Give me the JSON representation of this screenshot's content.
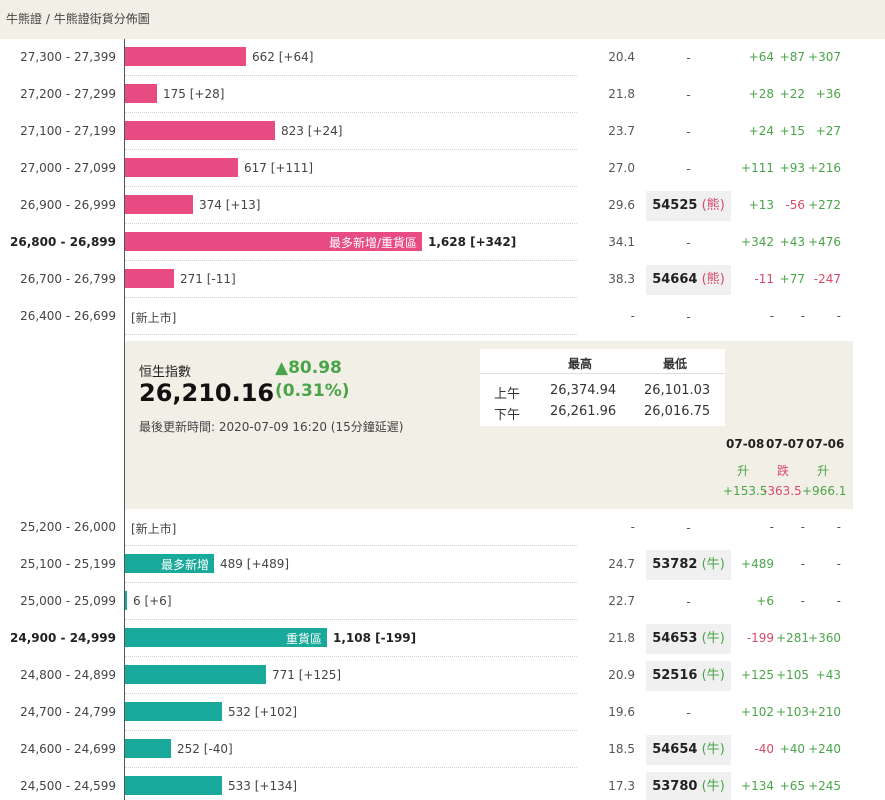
{
  "breadcrumb": {
    "root": "牛熊證",
    "separator": " / ",
    "current": "牛熊證街貨分佈圖"
  },
  "colors": {
    "bear_bar": "#e84a82",
    "bull_bar": "#18a99a",
    "positive": "#4aa54a",
    "negative": "#d84a6a"
  },
  "bear_rows": [
    {
      "range": "27,300 - 27,399",
      "value": 662,
      "label": "662 [+64]",
      "inbar": "",
      "bold": false,
      "pct": "20.4",
      "code": "",
      "type": "",
      "ch": [
        "+64",
        "+87",
        "+307"
      ]
    },
    {
      "range": "27,200 - 27,299",
      "value": 175,
      "label": "175 [+28]",
      "inbar": "",
      "bold": false,
      "pct": "21.8",
      "code": "",
      "type": "",
      "ch": [
        "+28",
        "+22",
        "+36"
      ]
    },
    {
      "range": "27,100 - 27,199",
      "value": 823,
      "label": "823 [+24]",
      "inbar": "",
      "bold": false,
      "pct": "23.7",
      "code": "",
      "type": "",
      "ch": [
        "+24",
        "+15",
        "+27"
      ]
    },
    {
      "range": "27,000 - 27,099",
      "value": 617,
      "label": "617 [+111]",
      "inbar": "",
      "bold": false,
      "pct": "27.0",
      "code": "",
      "type": "",
      "ch": [
        "+111",
        "+93",
        "+216"
      ]
    },
    {
      "range": "26,900 - 26,999",
      "value": 374,
      "label": "374 [+13]",
      "inbar": "",
      "bold": false,
      "pct": "29.6",
      "code": "54525",
      "type": "熊",
      "ch": [
        "+13",
        "-56",
        "+272"
      ]
    },
    {
      "range": "26,800 - 26,899",
      "value": 1628,
      "label": "1,628 [+342]",
      "inbar": "最多新增/重貨區",
      "bold": true,
      "pct": "34.1",
      "code": "",
      "type": "",
      "ch": [
        "+342",
        "+43",
        "+476"
      ]
    },
    {
      "range": "26,700 - 26,799",
      "value": 271,
      "label": "271 [-11]",
      "inbar": "",
      "bold": false,
      "pct": "38.3",
      "code": "54664",
      "type": "熊",
      "ch": [
        "-11",
        "+77",
        "-247"
      ]
    },
    {
      "range": "26,400 - 26,699",
      "value": 0,
      "label": "[新上市]",
      "inbar": "",
      "bold": false,
      "pct": "-",
      "code": "",
      "type": "",
      "ch": [
        "-",
        "-",
        "-"
      ]
    }
  ],
  "index": {
    "name": "恒生指數",
    "value": "26,210.16",
    "change": "▲80.98",
    "change_pct": "(0.31%)",
    "updated": "最後更新時間: 2020-07-09 16:20 (15分鐘延遲)",
    "table": {
      "hdr_high": "最高",
      "hdr_low": "最低",
      "am_label": "上午",
      "am_high": "26,374.94",
      "am_low": "26,101.03",
      "pm_label": "下午",
      "pm_high": "26,261.96",
      "pm_low": "26,016.75"
    },
    "history": [
      {
        "date": "07-08",
        "dir": "升",
        "val": "+153.5"
      },
      {
        "date": "07-07",
        "dir": "跌",
        "val": "-363.5"
      },
      {
        "date": "07-06",
        "dir": "升",
        "val": "+966.1"
      }
    ]
  },
  "bull_rows": [
    {
      "range": "25,200 - 26,000",
      "value": 0,
      "label": "[新上市]",
      "inbar": "",
      "bold": false,
      "pct": "-",
      "code": "",
      "type": "",
      "ch": [
        "-",
        "-",
        "-"
      ]
    },
    {
      "range": "25,100 - 25,199",
      "value": 489,
      "label": "489 [+489]",
      "inbar": "最多新增",
      "bold": false,
      "pct": "24.7",
      "code": "53782",
      "type": "牛",
      "ch": [
        "+489",
        "-",
        "-"
      ]
    },
    {
      "range": "25,000 - 25,099",
      "value": 6,
      "label": "6 [+6]",
      "inbar": "",
      "bold": false,
      "pct": "22.7",
      "code": "",
      "type": "",
      "ch": [
        "+6",
        "-",
        "-"
      ]
    },
    {
      "range": "24,900 - 24,999",
      "value": 1108,
      "label": "1,108 [-199]",
      "inbar": "重貨區",
      "bold": true,
      "pct": "21.8",
      "code": "54653",
      "type": "牛",
      "ch": [
        "-199",
        "+281",
        "+360"
      ]
    },
    {
      "range": "24,800 - 24,899",
      "value": 771,
      "label": "771 [+125]",
      "inbar": "",
      "bold": false,
      "pct": "20.9",
      "code": "52516",
      "type": "牛",
      "ch": [
        "+125",
        "+105",
        "+43"
      ]
    },
    {
      "range": "24,700 - 24,799",
      "value": 532,
      "label": "532 [+102]",
      "inbar": "",
      "bold": false,
      "pct": "19.6",
      "code": "",
      "type": "",
      "ch": [
        "+102",
        "+103",
        "+210"
      ]
    },
    {
      "range": "24,600 - 24,699",
      "value": 252,
      "label": "252 [-40]",
      "inbar": "",
      "bold": false,
      "pct": "18.5",
      "code": "54654",
      "type": "牛",
      "ch": [
        "-40",
        "+40",
        "+240"
      ]
    },
    {
      "range": "24,500 - 24,599",
      "value": 533,
      "label": "533 [+134]",
      "inbar": "",
      "bold": false,
      "pct": "17.3",
      "code": "53780",
      "type": "牛",
      "ch": [
        "+134",
        "+65",
        "+245"
      ]
    }
  ]
}
